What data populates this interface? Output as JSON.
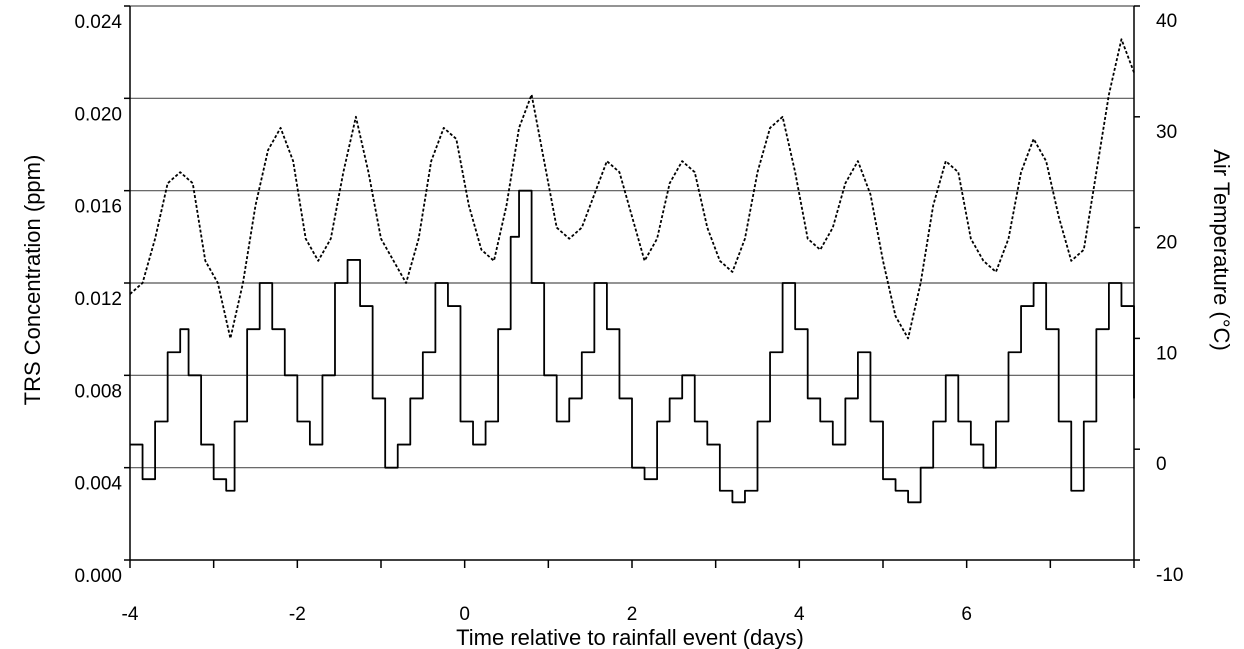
{
  "chart_data": {
    "type": "line",
    "title": "",
    "xlabel": "Time relative to rainfall event (days)",
    "ylabel": "TRS Concentration (ppm)",
    "y2label": "Air Temperature (°C)",
    "xlim": [
      -4,
      8
    ],
    "ylim": [
      0,
      0.024
    ],
    "y2lim": [
      -10,
      40
    ],
    "x_ticks": [
      -4,
      -2,
      0,
      2,
      4,
      6
    ],
    "x_tick_labels": [
      "-4",
      "-2",
      "0",
      "2",
      "4",
      "6"
    ],
    "y_ticks": [
      0,
      0.004,
      0.008,
      0.012,
      0.016,
      0.02,
      0.024
    ],
    "y_tick_labels": [
      "0.000",
      "0.004",
      "0.008",
      "0.012",
      "0.016",
      "0.020",
      "0.024"
    ],
    "y2_ticks": [
      -10,
      0,
      10,
      20,
      30,
      40
    ],
    "y2_tick_labels": [
      "-10",
      "0",
      "10",
      "20",
      "30",
      "40"
    ],
    "grid": "horizontal",
    "legend": "none",
    "series": [
      {
        "axis": "left",
        "style": "solid",
        "color": "#000000",
        "x": [
          -4.0,
          -3.85,
          -3.7,
          -3.55,
          -3.4,
          -3.3,
          -3.15,
          -3.0,
          -2.85,
          -2.75,
          -2.6,
          -2.45,
          -2.3,
          -2.15,
          -2.0,
          -1.85,
          -1.7,
          -1.55,
          -1.4,
          -1.25,
          -1.1,
          -0.95,
          -0.8,
          -0.65,
          -0.5,
          -0.35,
          -0.2,
          -0.05,
          0.1,
          0.25,
          0.4,
          0.55,
          0.65,
          0.8,
          0.95,
          1.1,
          1.25,
          1.4,
          1.55,
          1.7,
          1.85,
          2.0,
          2.15,
          2.3,
          2.45,
          2.6,
          2.75,
          2.9,
          3.05,
          3.2,
          3.35,
          3.5,
          3.65,
          3.8,
          3.95,
          4.1,
          4.25,
          4.4,
          4.55,
          4.7,
          4.85,
          5.0,
          5.15,
          5.3,
          5.45,
          5.6,
          5.75,
          5.9,
          6.05,
          6.2,
          6.35,
          6.5,
          6.65,
          6.8,
          6.95,
          7.1,
          7.25,
          7.4,
          7.55,
          7.7,
          7.85,
          8.0
        ],
        "y": [
          0.005,
          0.0035,
          0.006,
          0.009,
          0.01,
          0.008,
          0.005,
          0.0035,
          0.003,
          0.006,
          0.01,
          0.012,
          0.01,
          0.008,
          0.006,
          0.005,
          0.008,
          0.012,
          0.013,
          0.011,
          0.007,
          0.004,
          0.005,
          0.007,
          0.009,
          0.012,
          0.011,
          0.006,
          0.005,
          0.006,
          0.01,
          0.014,
          0.016,
          0.012,
          0.008,
          0.006,
          0.007,
          0.009,
          0.012,
          0.01,
          0.007,
          0.004,
          0.0035,
          0.006,
          0.007,
          0.008,
          0.006,
          0.005,
          0.003,
          0.0025,
          0.003,
          0.006,
          0.009,
          0.012,
          0.01,
          0.007,
          0.006,
          0.005,
          0.007,
          0.009,
          0.006,
          0.0035,
          0.003,
          0.0025,
          0.004,
          0.006,
          0.008,
          0.006,
          0.005,
          0.004,
          0.006,
          0.009,
          0.011,
          0.012,
          0.01,
          0.006,
          0.003,
          0.006,
          0.01,
          0.012,
          0.011,
          0.007
        ]
      },
      {
        "axis": "right",
        "style": "dashed",
        "color": "#000000",
        "x": [
          -4.0,
          -3.85,
          -3.7,
          -3.55,
          -3.4,
          -3.25,
          -3.1,
          -2.95,
          -2.8,
          -2.65,
          -2.5,
          -2.35,
          -2.2,
          -2.05,
          -1.9,
          -1.75,
          -1.6,
          -1.45,
          -1.3,
          -1.15,
          -1.0,
          -0.85,
          -0.7,
          -0.55,
          -0.4,
          -0.25,
          -0.1,
          0.05,
          0.2,
          0.35,
          0.5,
          0.65,
          0.8,
          0.95,
          1.1,
          1.25,
          1.4,
          1.55,
          1.7,
          1.85,
          2.0,
          2.15,
          2.3,
          2.45,
          2.6,
          2.75,
          2.9,
          3.05,
          3.2,
          3.35,
          3.5,
          3.65,
          3.8,
          3.95,
          4.1,
          4.25,
          4.4,
          4.55,
          4.7,
          4.85,
          5.0,
          5.15,
          5.3,
          5.45,
          5.6,
          5.75,
          5.9,
          6.05,
          6.2,
          6.35,
          6.5,
          6.65,
          6.8,
          6.95,
          7.1,
          7.25,
          7.4,
          7.55,
          7.7,
          7.85,
          8.0
        ],
        "y": [
          14,
          15,
          19,
          24,
          25,
          24,
          17,
          15,
          10,
          15,
          22,
          27,
          29,
          26,
          19,
          17,
          19,
          25,
          30,
          25,
          19,
          17,
          15,
          19,
          26,
          29,
          28,
          22,
          18,
          17,
          22,
          29,
          32,
          26,
          20,
          19,
          20,
          23,
          26,
          25,
          21,
          17,
          19,
          24,
          26,
          25,
          20,
          17,
          16,
          19,
          25,
          29,
          30,
          25,
          19,
          18,
          20,
          24,
          26,
          23,
          17,
          12,
          10,
          15,
          22,
          26,
          25,
          19,
          17,
          16,
          19,
          25,
          28,
          26,
          21,
          17,
          18,
          25,
          32,
          37,
          34
        ]
      }
    ]
  }
}
